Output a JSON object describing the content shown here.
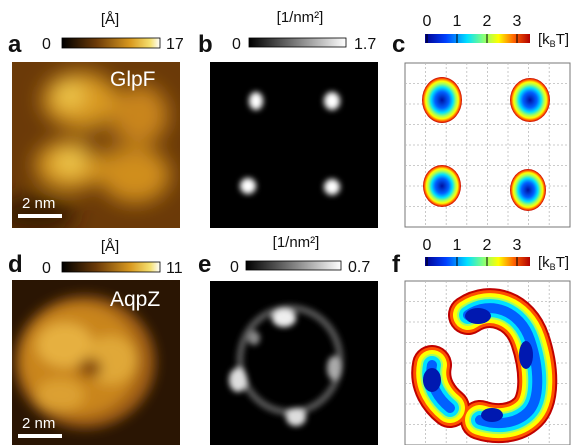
{
  "panels": [
    {
      "letter": "a",
      "unit": "[Å]",
      "scale_min": 0,
      "scale_max": 17,
      "label": "GlpF",
      "scalebar": "2 nm"
    },
    {
      "letter": "b",
      "unit": "[1/nm²]",
      "scale_min": 0,
      "scale_max": 1.7
    },
    {
      "letter": "c",
      "scale_ticks": [
        0,
        1,
        2,
        3
      ],
      "unit": {
        "pre": "[k",
        "sub": "B",
        "post": "T]"
      }
    },
    {
      "letter": "d",
      "unit": "[Å]",
      "scale_min": 0,
      "scale_max": 11,
      "label": "AqpZ",
      "scalebar": "2 nm"
    },
    {
      "letter": "e",
      "unit": "[1/nm²]",
      "scale_min": 0,
      "scale_max": 0.7
    },
    {
      "letter": "f",
      "scale_ticks": [
        0,
        1,
        2,
        3
      ],
      "unit": {
        "pre": "[k",
        "sub": "B",
        "post": "T]"
      }
    }
  ]
}
